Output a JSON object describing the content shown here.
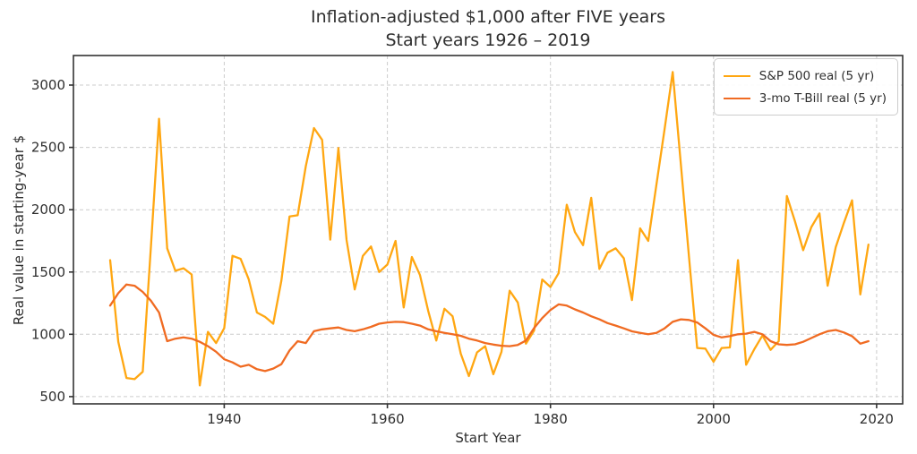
{
  "chart_data": {
    "type": "line",
    "title": "Inflation-adjusted $1,000 after FIVE years",
    "subtitle": "Start years 1926 – 2019",
    "xlabel": "Start Year",
    "ylabel": "Real value in starting-year $",
    "x_ticks": [
      1940,
      1960,
      1980,
      2000,
      2020
    ],
    "y_ticks": [
      500,
      1000,
      1500,
      2000,
      2500,
      3000
    ],
    "xlim": [
      1921.5,
      2023.2
    ],
    "ylim": [
      442,
      3237
    ],
    "grid": true,
    "legend_position": "top-right",
    "x": [
      1926,
      1927,
      1928,
      1929,
      1930,
      1931,
      1932,
      1933,
      1934,
      1935,
      1936,
      1937,
      1938,
      1939,
      1940,
      1941,
      1942,
      1943,
      1944,
      1945,
      1946,
      1947,
      1948,
      1949,
      1950,
      1951,
      1952,
      1953,
      1954,
      1955,
      1956,
      1957,
      1958,
      1959,
      1960,
      1961,
      1962,
      1963,
      1964,
      1965,
      1966,
      1967,
      1968,
      1969,
      1970,
      1971,
      1972,
      1973,
      1974,
      1975,
      1976,
      1977,
      1978,
      1979,
      1980,
      1981,
      1982,
      1983,
      1984,
      1985,
      1986,
      1987,
      1988,
      1989,
      1990,
      1991,
      1992,
      1993,
      1994,
      1995,
      1996,
      1997,
      1998,
      1999,
      2000,
      2001,
      2002,
      2003,
      2004,
      2005,
      2006,
      2007,
      2008,
      2009,
      2010,
      2011,
      2012,
      2013,
      2014,
      2015,
      2016,
      2017,
      2018,
      2019
    ],
    "series": [
      {
        "key": "sp500",
        "name": "S&P 500 real (5 yr)",
        "color": "#FFA712",
        "values": [
          1595,
          940,
          650,
          640,
          700,
          1700,
          2730,
          1690,
          1510,
          1530,
          1480,
          590,
          1020,
          930,
          1050,
          1630,
          1605,
          1440,
          1175,
          1140,
          1085,
          1430,
          1945,
          1955,
          2350,
          2655,
          2560,
          1760,
          2495,
          1757,
          1360,
          1630,
          1705,
          1500,
          1560,
          1750,
          1215,
          1620,
          1475,
          1190,
          950,
          1205,
          1145,
          845,
          665,
          855,
          905,
          680,
          860,
          1350,
          1255,
          925,
          1030,
          1440,
          1380,
          1490,
          2040,
          1820,
          1715,
          2095,
          1525,
          1655,
          1690,
          1610,
          1275,
          1850,
          1750,
          2200,
          2645,
          3105,
          2365,
          1620,
          890,
          885,
          780,
          890,
          895,
          1595,
          755,
          880,
          990,
          875,
          945,
          2110,
          1905,
          1675,
          1860,
          1970,
          1390,
          1700,
          1895,
          2075,
          1320,
          1720
        ]
      },
      {
        "key": "tbill",
        "name": "3-mo T-Bill real (5 yr)",
        "color": "#F06B22",
        "values": [
          1230,
          1330,
          1400,
          1390,
          1340,
          1270,
          1175,
          945,
          965,
          975,
          965,
          940,
          905,
          860,
          800,
          775,
          740,
          755,
          720,
          705,
          725,
          760,
          870,
          945,
          930,
          1025,
          1040,
          1048,
          1055,
          1035,
          1025,
          1040,
          1060,
          1085,
          1095,
          1100,
          1098,
          1085,
          1070,
          1040,
          1025,
          1012,
          1000,
          988,
          965,
          950,
          930,
          918,
          908,
          905,
          915,
          950,
          1050,
          1130,
          1195,
          1240,
          1230,
          1200,
          1175,
          1145,
          1120,
          1090,
          1070,
          1048,
          1024,
          1012,
          1000,
          1012,
          1048,
          1100,
          1120,
          1115,
          1095,
          1048,
          995,
          975,
          985,
          1000,
          1005,
          1020,
          1000,
          945,
          920,
          915,
          920,
          940,
          970,
          1000,
          1025,
          1035,
          1015,
          985,
          925,
          945
        ]
      }
    ]
  }
}
